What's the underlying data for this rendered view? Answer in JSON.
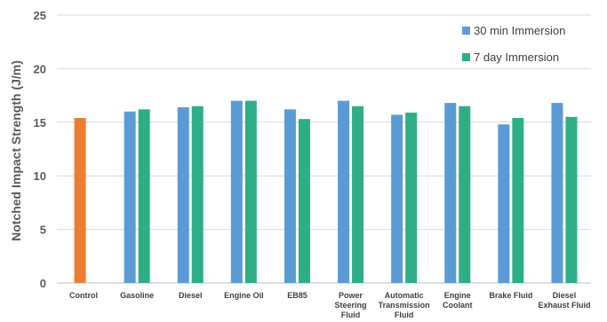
{
  "chart_data": {
    "type": "bar",
    "title": "",
    "xlabel": "",
    "ylabel": "Notched Impact Strength (J/m)",
    "ylim": [
      0,
      25
    ],
    "yticks": [
      0,
      5,
      10,
      15,
      20,
      25
    ],
    "grid": true,
    "legend_position": "top-right",
    "categories": [
      [
        "Control"
      ],
      [
        "Gasoline"
      ],
      [
        "Diesel"
      ],
      [
        "Engine Oil"
      ],
      [
        "EB85"
      ],
      [
        "Power",
        "Steering",
        "Fluid"
      ],
      [
        "Automatic",
        "Transmission",
        "Fluid"
      ],
      [
        "Engine",
        "Coolant"
      ],
      [
        "Brake Fluid"
      ],
      [
        "Diesel",
        "Exhaust Fluid"
      ]
    ],
    "control": {
      "value": 15.4,
      "color": "#ED7D31"
    },
    "series": [
      {
        "name": "30 min Immersion",
        "color": "#5B9BD5",
        "values": [
          null,
          16.0,
          16.4,
          17.0,
          16.2,
          17.0,
          15.7,
          16.8,
          14.8,
          16.8
        ]
      },
      {
        "name": "7 day Immersion",
        "color": "#2EAE86",
        "values": [
          null,
          16.2,
          16.5,
          17.0,
          15.3,
          16.5,
          15.9,
          16.5,
          15.4,
          15.5
        ]
      }
    ]
  }
}
